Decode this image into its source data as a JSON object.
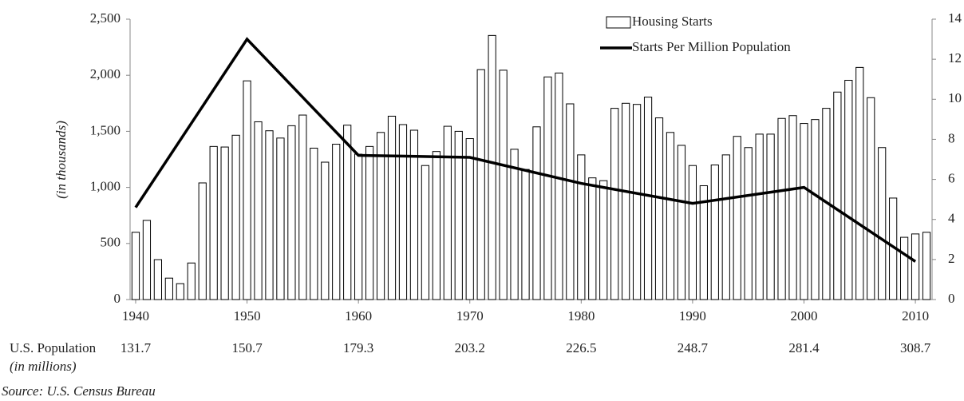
{
  "chart_data": {
    "type": "bar_line",
    "y_label": "(in thousands)",
    "series": [
      {
        "name": "Housing Starts",
        "type": "bar",
        "color": "#ffffff",
        "stroke": "#000000",
        "x": [
          1940,
          1941,
          1942,
          1943,
          1944,
          1945,
          1946,
          1947,
          1948,
          1949,
          1950,
          1951,
          1952,
          1953,
          1954,
          1955,
          1956,
          1957,
          1958,
          1959,
          1960,
          1961,
          1962,
          1963,
          1964,
          1965,
          1966,
          1967,
          1968,
          1969,
          1970,
          1971,
          1972,
          1973,
          1974,
          1975,
          1976,
          1977,
          1978,
          1979,
          1980,
          1981,
          1982,
          1983,
          1984,
          1985,
          1986,
          1987,
          1988,
          1989,
          1990,
          1991,
          1992,
          1993,
          1994,
          1995,
          1996,
          1997,
          1998,
          1999,
          2000,
          2001,
          2002,
          2003,
          2004,
          2005,
          2006,
          2007,
          2008,
          2009,
          2010,
          2011
        ],
        "values": [
          600,
          706,
          356,
          191,
          142,
          326,
          1040,
          1365,
          1360,
          1465,
          1950,
          1585,
          1505,
          1440,
          1550,
          1645,
          1350,
          1225,
          1385,
          1555,
          1296,
          1365,
          1490,
          1635,
          1560,
          1510,
          1195,
          1320,
          1545,
          1500,
          1435,
          2050,
          2355,
          2045,
          1340,
          1160,
          1540,
          1985,
          2020,
          1745,
          1290,
          1085,
          1060,
          1705,
          1750,
          1740,
          1805,
          1620,
          1490,
          1375,
          1195,
          1015,
          1200,
          1290,
          1455,
          1355,
          1475,
          1475,
          1615,
          1640,
          1570,
          1605,
          1705,
          1850,
          1955,
          2070,
          1800,
          1355,
          905,
          555,
          585,
          600
        ]
      },
      {
        "name": "Starts Per Million Population",
        "type": "line",
        "axis": "y2",
        "color": "#000000",
        "x": [
          1940,
          1950,
          1960,
          1970,
          1980,
          1990,
          2000,
          2010
        ],
        "values": [
          4.6,
          13.0,
          7.2,
          7.1,
          5.8,
          4.8,
          5.6,
          1.9
        ]
      }
    ],
    "xlim": [
      1939.5,
      2011.5
    ],
    "xticks": [
      1940,
      1950,
      1960,
      1970,
      1980,
      1990,
      2000,
      2010
    ],
    "ylim": [
      0,
      2500
    ],
    "yticks": [
      0,
      500,
      {
        "value": 1000,
        "label": "1,000"
      },
      {
        "value": 1500,
        "label": "1,500"
      },
      {
        "value": 2000,
        "label": "2,000"
      },
      {
        "value": 2500,
        "label": "2,500"
      }
    ],
    "y2lim": [
      0,
      14
    ],
    "y2ticks": [
      0,
      2,
      4,
      6,
      8,
      10,
      12,
      14
    ],
    "population": {
      "label": "U.S. Population",
      "sublabel": "(in millions)",
      "x": [
        1940,
        1950,
        1960,
        1970,
        1980,
        1990,
        2000,
        2010
      ],
      "values": [
        131.7,
        150.7,
        179.3,
        203.2,
        226.5,
        248.7,
        281.4,
        308.7
      ]
    },
    "source": "Source: U.S. Census Bureau"
  }
}
